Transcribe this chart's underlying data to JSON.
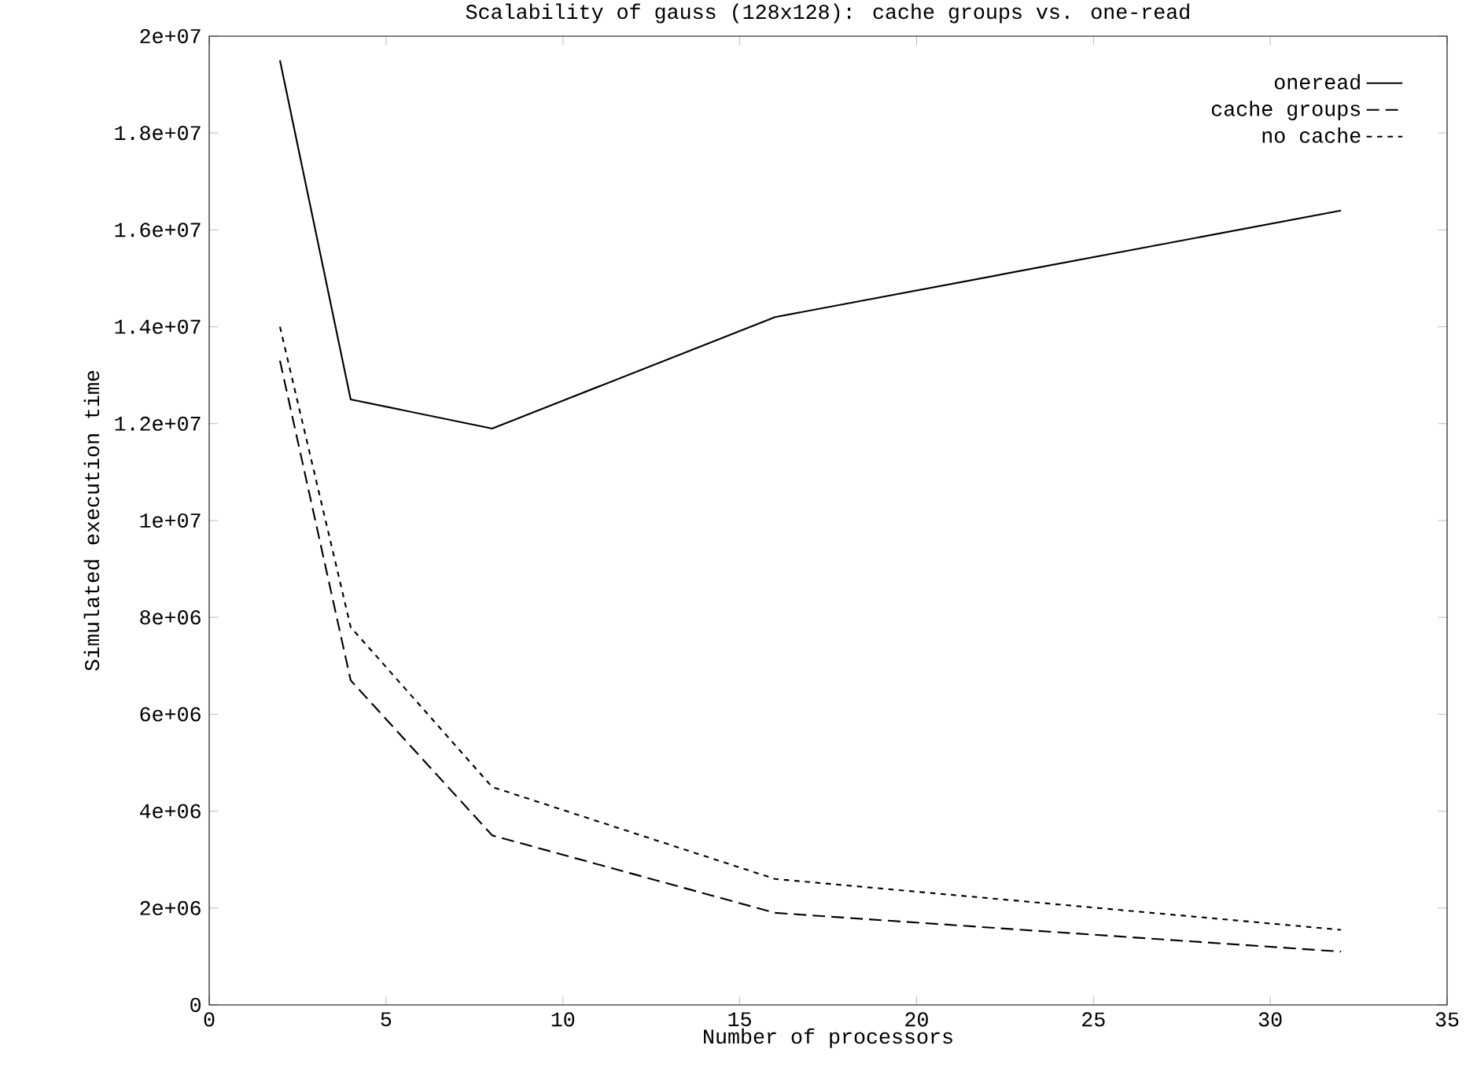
{
  "chart_data": {
    "type": "line",
    "title": "Scalability of gauss (128x128): cache groups vs. one-read",
    "xlabel": "Number of processors",
    "ylabel": "Simulated execution time",
    "x": [
      2,
      4,
      8,
      16,
      32
    ],
    "series": [
      {
        "name": "oneread",
        "color": "#000000",
        "line_style": "solid",
        "values": [
          19500000,
          12500000,
          11900000,
          14200000,
          16400000
        ]
      },
      {
        "name": "cache groups",
        "color": "#000000",
        "line_style": "dashed",
        "values": [
          13300000,
          6700000,
          3500000,
          1900000,
          1100000
        ]
      },
      {
        "name": "no cache",
        "color": "#000000",
        "line_style": "dotted",
        "values": [
          14000000,
          7800000,
          4500000,
          2600000,
          1550000
        ]
      }
    ],
    "xlim": [
      0,
      35
    ],
    "xticks": [
      0,
      5,
      10,
      15,
      20,
      25,
      30,
      35
    ],
    "ylim": [
      0,
      20000000
    ],
    "yticks": [
      0,
      {
        "value": 2000000,
        "label": "2e+06"
      },
      {
        "value": 4000000,
        "label": "4e+06"
      },
      {
        "value": 6000000,
        "label": "6e+06"
      },
      {
        "value": 8000000,
        "label": "8e+06"
      },
      {
        "value": 10000000,
        "label": "1e+07"
      },
      {
        "value": 12000000,
        "label": "1.2e+07"
      },
      {
        "value": 14000000,
        "label": "1.4e+07"
      },
      {
        "value": 16000000,
        "label": "1.6e+07"
      },
      {
        "value": 18000000,
        "label": "1.8e+07"
      },
      {
        "value": 20000000,
        "label": "2e+07"
      }
    ],
    "legend": "top right"
  }
}
